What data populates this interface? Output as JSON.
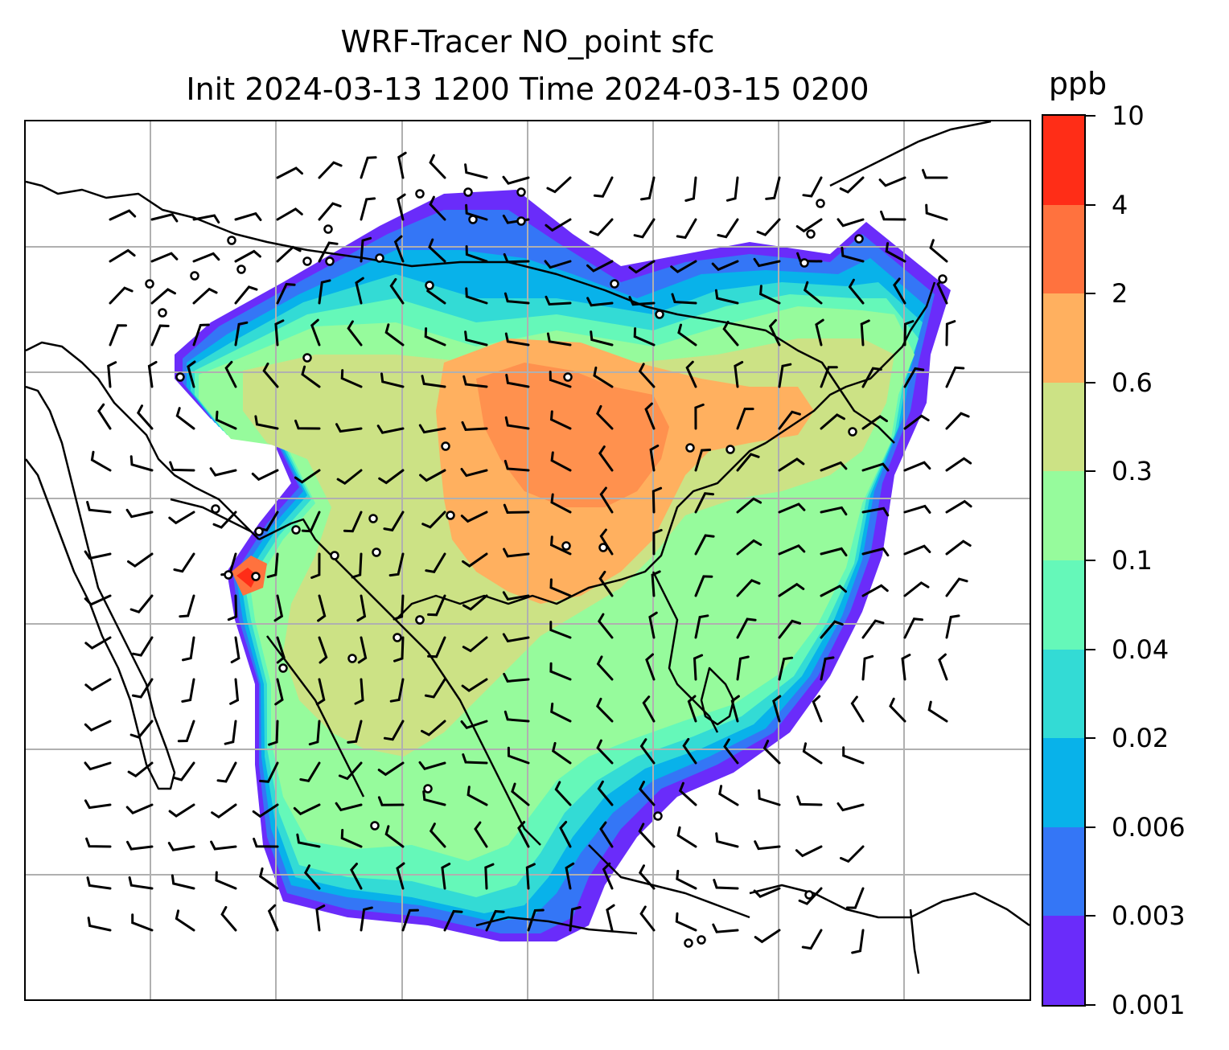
{
  "title_line1": "WRF-Tracer NO_point sfc",
  "title_line2": "Init 2024-03-13 1200 Time 2024-03-15 0200",
  "colorbar": {
    "unit": "ppb",
    "levels": [
      "0.001",
      "0.003",
      "0.006",
      "0.02",
      "0.04",
      "0.1",
      "0.3",
      "0.6",
      "2",
      "4",
      "10"
    ],
    "colors": [
      "#6a2cfa",
      "#3476f6",
      "#08b2ea",
      "#33dbd5",
      "#65f8b9",
      "#96fb9c",
      "#cce285",
      "#ffb05f",
      "#ff723e",
      "#ff2d17"
    ]
  },
  "map": {
    "land_color": "#ffffff",
    "gridline_color": "#b0b0b0",
    "coastline_color": "#000000",
    "barb_color": "#000000",
    "point_sources_shown": true,
    "wind_barbs_shown": true
  }
}
